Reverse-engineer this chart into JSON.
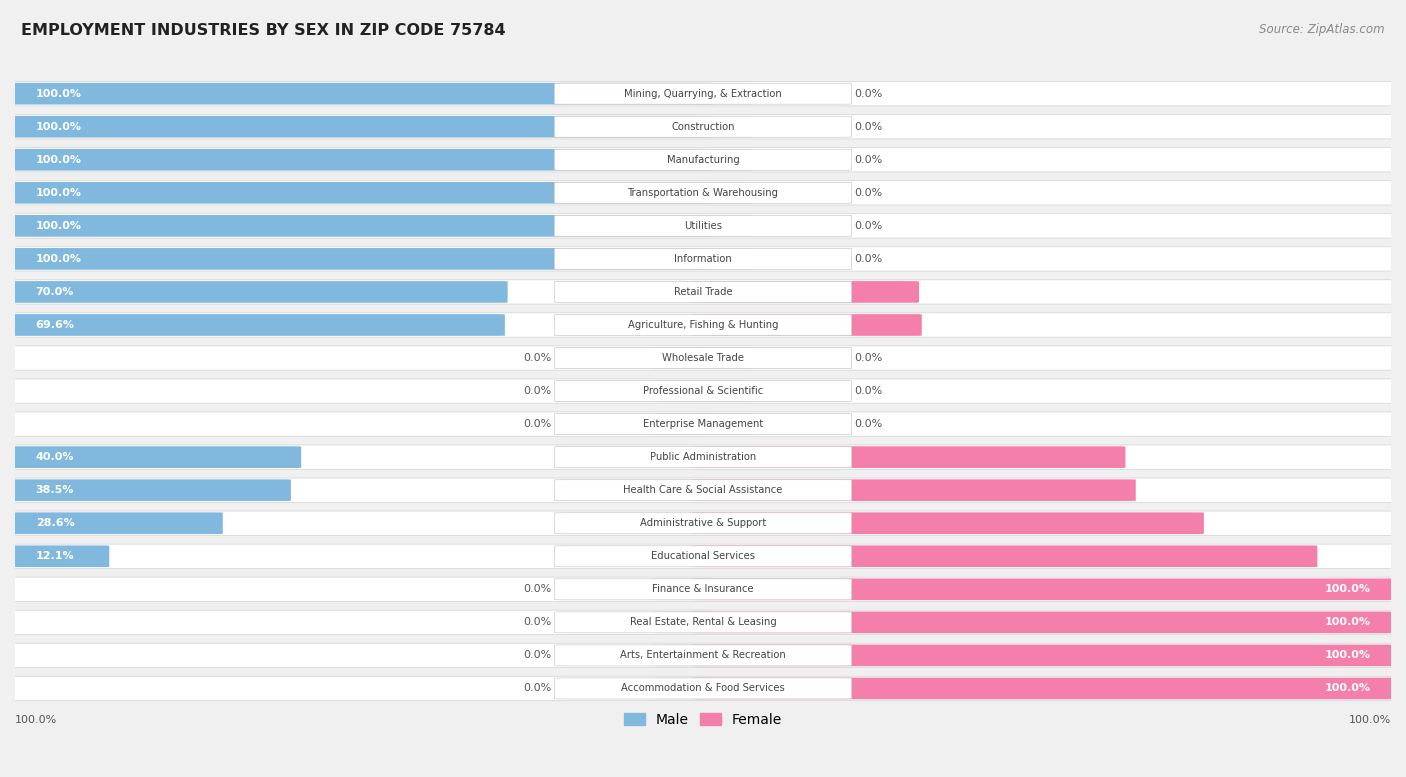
{
  "title": "EMPLOYMENT INDUSTRIES BY SEX IN ZIP CODE 75784",
  "source": "Source: ZipAtlas.com",
  "industries": [
    "Mining, Quarrying, & Extraction",
    "Construction",
    "Manufacturing",
    "Transportation & Warehousing",
    "Utilities",
    "Information",
    "Retail Trade",
    "Agriculture, Fishing & Hunting",
    "Wholesale Trade",
    "Professional & Scientific",
    "Enterprise Management",
    "Public Administration",
    "Health Care & Social Assistance",
    "Administrative & Support",
    "Educational Services",
    "Finance & Insurance",
    "Real Estate, Rental & Leasing",
    "Arts, Entertainment & Recreation",
    "Accommodation & Food Services"
  ],
  "male_pct": [
    100.0,
    100.0,
    100.0,
    100.0,
    100.0,
    100.0,
    70.0,
    69.6,
    0.0,
    0.0,
    0.0,
    40.0,
    38.5,
    28.6,
    12.1,
    0.0,
    0.0,
    0.0,
    0.0
  ],
  "female_pct": [
    0.0,
    0.0,
    0.0,
    0.0,
    0.0,
    0.0,
    30.0,
    30.4,
    0.0,
    0.0,
    0.0,
    60.0,
    61.5,
    71.4,
    87.9,
    100.0,
    100.0,
    100.0,
    100.0
  ],
  "male_color": "#80b8de",
  "female_color": "#f47faa",
  "male_color_dim": "#b8d5ea",
  "female_color_dim": "#f5b8cc",
  "male_label": "Male",
  "female_label": "Female",
  "bg_color": "#f0f0f0",
  "row_bg_color": "#ffffff",
  "row_edge_color": "#d8d8d8",
  "title_color": "#222222",
  "source_color": "#888888",
  "label_color_dark": "#555555",
  "label_color_white": "#ffffff",
  "center_box_color": "#ffffff",
  "center_box_edge": "#cccccc",
  "industry_text_color": "#444444"
}
